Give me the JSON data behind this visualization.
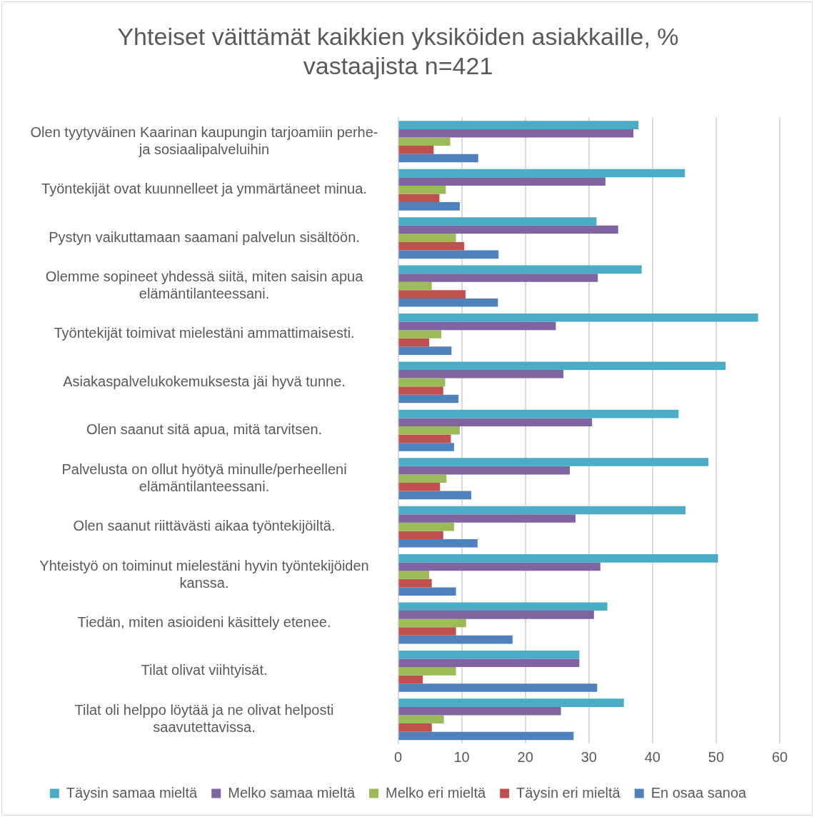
{
  "chart_data": {
    "type": "bar",
    "orientation": "horizontal",
    "title": "Yhteiset väittämät kaikkien yksiköiden asiakkaille, % vastaajista n=421",
    "categories": [
      "Olen tyytyväinen Kaarinan kaupungin tarjoamiin perhe- ja sosiaalipalveluihin",
      "Työntekijät ovat kuunnelleet ja ymmärtäneet minua.",
      "Pystyn vaikuttamaan saamani palvelun sisältöön.",
      "Olemme sopineet yhdessä siitä, miten saisin apua elämäntilanteessani.",
      "Työntekijät toimivat mielestäni ammattimaisesti.",
      "Asiakaspalvelukokemuksesta jäi hyvä tunne.",
      "Olen saanut sitä apua, mitä tarvitsen.",
      "Palvelusta on ollut hyötyä minulle/perheelleni elämäntilanteessani.",
      "Olen saanut riittävästi aikaa työntekijöiltä.",
      "Yhteistyö on toiminut mielestäni hyvin työntekijöiden kanssa.",
      "Tiedän, miten asioideni käsittely etenee.",
      "Tilat olivat viihtyisät.",
      "Tilat oli helppo löytää ja ne olivat helposti saavutettavissa."
    ],
    "series": [
      {
        "name": "Täysin samaa mieltä",
        "color": "#4bacc6",
        "values": [
          37.8,
          45.1,
          31.2,
          38.3,
          56.6,
          51.5,
          44.1,
          48.8,
          45.2,
          50.3,
          32.9,
          28.5,
          35.5
        ]
      },
      {
        "name": "Melko samaa mieltä",
        "color": "#8064a2",
        "values": [
          37.0,
          32.6,
          34.6,
          31.4,
          24.8,
          26.0,
          30.5,
          27.0,
          27.9,
          31.8,
          30.8,
          28.5,
          25.6
        ]
      },
      {
        "name": "Melko eri mieltä",
        "color": "#9bbb59",
        "values": [
          8.2,
          7.5,
          9.1,
          5.3,
          6.8,
          7.4,
          9.7,
          7.6,
          8.8,
          4.9,
          10.7,
          9.1,
          7.2
        ]
      },
      {
        "name": "Täysin eri mieltä",
        "color": "#c0504d",
        "values": [
          5.6,
          6.5,
          10.4,
          10.6,
          4.9,
          7.1,
          8.3,
          6.6,
          7.1,
          5.3,
          9.1,
          3.9,
          5.3
        ]
      },
      {
        "name": "En osaa sanoa",
        "color": "#4f81bd",
        "values": [
          12.6,
          9.7,
          15.8,
          15.7,
          8.4,
          9.5,
          8.8,
          11.5,
          12.5,
          9.1,
          18.0,
          31.3,
          27.6
        ]
      }
    ],
    "xlim": [
      0,
      60
    ],
    "xticks": [
      0,
      10,
      20,
      30,
      40,
      50,
      60
    ],
    "grid": "x",
    "legend": "bottom"
  }
}
